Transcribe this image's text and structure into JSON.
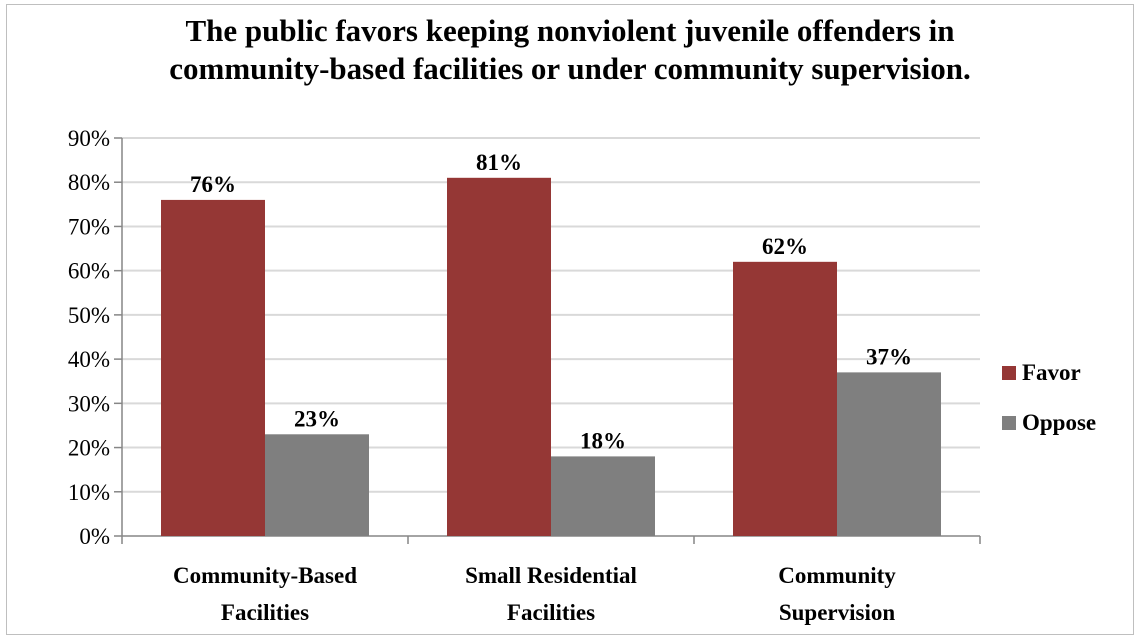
{
  "chart_data": {
    "type": "bar",
    "title": "The public favors keeping nonviolent juvenile offenders in community-based facilities or under community supervision.",
    "categories": [
      [
        "Community-Based",
        "Facilities"
      ],
      [
        "Small Residential",
        "Facilities"
      ],
      [
        "Community",
        "Supervision"
      ]
    ],
    "series": [
      {
        "name": "Favor",
        "values": [
          76,
          81,
          62
        ],
        "labels": [
          "76%",
          "81%",
          "62%"
        ],
        "color": "#953735"
      },
      {
        "name": "Oppose",
        "values": [
          23,
          18,
          37
        ],
        "labels": [
          "23%",
          "18%",
          "37%"
        ],
        "color": "#7f7f7f"
      }
    ],
    "y_ticks": [
      "0%",
      "10%",
      "20%",
      "30%",
      "40%",
      "50%",
      "60%",
      "70%",
      "80%",
      "90%"
    ],
    "ylim": [
      0,
      90
    ],
    "grid": true,
    "legend_position": "right"
  }
}
